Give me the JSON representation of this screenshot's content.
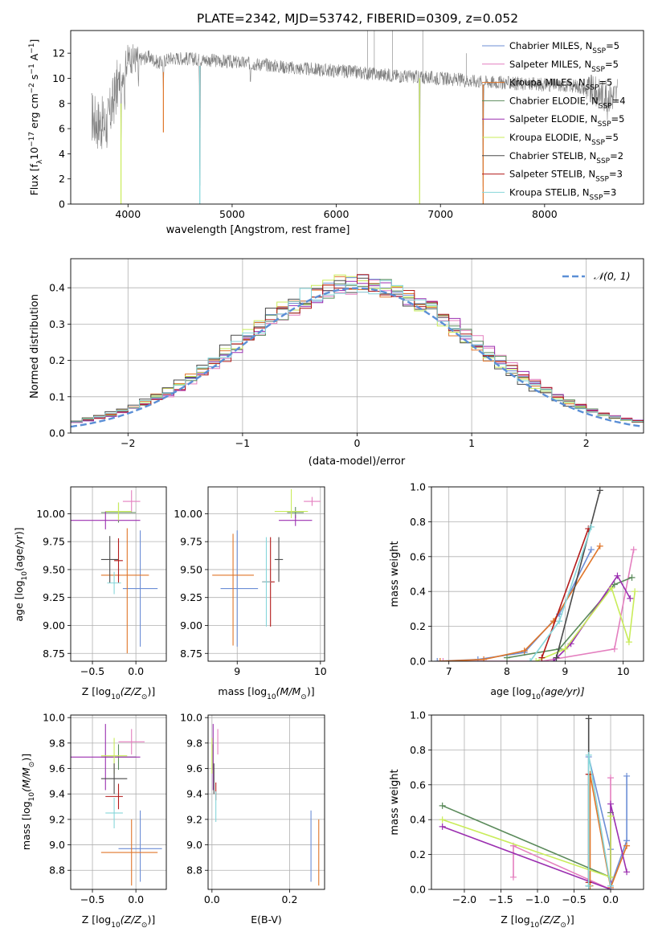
{
  "figure": {
    "title": "PLATE=2342, MJD=53742, FIBERID=0309, z=0.052",
    "models": [
      {
        "name": "Chabrier MILES",
        "nssp": "5",
        "color": "#6c8ed6"
      },
      {
        "name": "Salpeter MILES",
        "nssp": "5",
        "color": "#e47fbf"
      },
      {
        "name": "Kroupa MILES",
        "nssp": "5",
        "color": "#e0762a"
      },
      {
        "name": "Chabrier ELODIE",
        "nssp": "4",
        "color": "#5a8a5a"
      },
      {
        "name": "Salpeter ELODIE",
        "nssp": "5",
        "color": "#9b2fb0"
      },
      {
        "name": "Kroupa ELODIE",
        "nssp": "5",
        "color": "#c9ec5a"
      },
      {
        "name": "Chabrier STELIB",
        "nssp": "2",
        "color": "#4a4a4a"
      },
      {
        "name": "Salpeter STELIB",
        "nssp": "3",
        "color": "#b21a1a"
      },
      {
        "name": "Kroupa STELIB",
        "nssp": "3",
        "color": "#86d6da"
      }
    ]
  },
  "chart_data": [
    {
      "id": "spectrum",
      "type": "line",
      "title": "PLATE=2342, MJD=53742, FIBERID=0309, z=0.052",
      "xlabel": "wavelength [Angstrom, rest frame]",
      "ylabel_parts": [
        "Flux [f",
        "λ",
        "10",
        "−17",
        " erg cm",
        "−2",
        " s",
        "−1",
        " A",
        "−1",
        "]"
      ],
      "xlim": [
        3450,
        8950
      ],
      "ylim": [
        0,
        13.8
      ],
      "xticks": [
        4000,
        5000,
        6000,
        7000,
        8000
      ],
      "yticks": [
        0,
        2,
        4,
        6,
        8,
        10,
        12
      ],
      "grid": false,
      "legend_position": "top-right",
      "data_color": "#808080",
      "model_color": "#7fd6da",
      "continuum": {
        "x": [
          3650,
          3700,
          3800,
          3900,
          4000,
          4100,
          4200,
          4300,
          4400,
          4500,
          4700,
          5000,
          5300,
          5600,
          6000,
          6300,
          6600,
          7000,
          7300,
          7500,
          7700,
          8000,
          8300,
          8600,
          8700
        ],
        "y": [
          7.0,
          6.5,
          6.3,
          9.5,
          11.6,
          11.5,
          11.7,
          11.2,
          11.6,
          11.6,
          11.5,
          11.3,
          11.1,
          10.8,
          10.6,
          10.4,
          10.2,
          10.0,
          9.8,
          9.7,
          9.6,
          9.5,
          9.4,
          8.6,
          8.7
        ]
      },
      "absorption_features": [
        {
          "x": 3933,
          "depth": 7.5
        },
        {
          "x": 3968,
          "depth": 4.0
        },
        {
          "x": 4101,
          "depth": 2.5
        },
        {
          "x": 4340,
          "depth": 3.0
        },
        {
          "x": 4690,
          "depth": 11.5
        },
        {
          "x": 5175,
          "depth": 1.5
        },
        {
          "x": 6800,
          "depth": 10.0
        },
        {
          "x": 7410,
          "depth": 10.0
        },
        {
          "x": 8600,
          "depth": 2.0
        }
      ]
    },
    {
      "id": "residuals",
      "type": "histogram",
      "xlabel": "(data-model)/error",
      "ylabel": "Normed distribution",
      "xlim": [
        -2.5,
        2.5
      ],
      "ylim": [
        0,
        0.48
      ],
      "xticks": [
        -2,
        -1,
        0,
        1,
        2
      ],
      "yticks": [
        0.0,
        0.1,
        0.2,
        0.3,
        0.4
      ],
      "grid": true,
      "legend_position": "top-right",
      "reference_label": "𝒩(0, 1)",
      "reference_color": "#5b8fd6",
      "bin_width": 0.1,
      "series_offsets": [
        0.0,
        0.05,
        -0.03,
        0.02,
        0.04,
        -0.02,
        -0.05,
        0.03,
        -0.01
      ]
    },
    {
      "id": "age-vs-Z",
      "type": "scatter",
      "xlabel_parts": [
        "Z [log",
        "10",
        "(Z/Z",
        "⊙",
        ")]"
      ],
      "ylabel_parts": [
        "age  [log",
        "10",
        "(age/yr)]"
      ],
      "xlim": [
        -0.75,
        0.35
      ],
      "ylim": [
        8.68,
        10.24
      ],
      "xticks": [
        -0.5,
        0.0
      ],
      "yticks": [
        8.75,
        9.0,
        9.25,
        9.5,
        9.75,
        10.0
      ],
      "grid": true,
      "points": [
        {
          "x": 0.05,
          "y": 9.33,
          "xerr": [
            0.2,
            0.2
          ],
          "yerr": [
            0.52,
            0.52
          ],
          "color": "#6c8ed6"
        },
        {
          "x": -0.05,
          "y": 10.11,
          "xerr": [
            0.1,
            0.1
          ],
          "yerr": [
            0.1,
            0.1
          ],
          "color": "#e47fbf"
        },
        {
          "x": -0.1,
          "y": 9.45,
          "xerr": [
            0.3,
            0.25
          ],
          "yerr": [
            0.7,
            0.42
          ],
          "color": "#e0762a"
        },
        {
          "x": -0.2,
          "y": 10.01,
          "xerr": [
            0.2,
            0.2
          ],
          "yerr": [
            0.09,
            0.09
          ],
          "color": "#5a8a5a"
        },
        {
          "x": -0.35,
          "y": 9.94,
          "xerr": [
            0.4,
            0.4
          ],
          "yerr": [
            0.08,
            0.08
          ],
          "color": "#9b2fb0"
        },
        {
          "x": -0.2,
          "y": 10.02,
          "xerr": [
            0.15,
            0.15
          ],
          "yerr": [
            0.08,
            0.08
          ],
          "color": "#c9ec5a"
        },
        {
          "x": -0.3,
          "y": 9.59,
          "xerr": [
            0.1,
            0.1
          ],
          "yerr": [
            0.21,
            0.21
          ],
          "color": "#4a4a4a"
        },
        {
          "x": -0.2,
          "y": 9.58,
          "xerr": [
            0.05,
            0.05
          ],
          "yerr": [
            0.2,
            0.2
          ],
          "color": "#b21a1a"
        },
        {
          "x": -0.25,
          "y": 9.38,
          "xerr": [
            0.08,
            0.08
          ],
          "yerr": [
            0.1,
            0.1
          ],
          "color": "#86d6da"
        }
      ]
    },
    {
      "id": "age-vs-mass",
      "type": "scatter",
      "xlabel_parts": [
        "mass [log",
        "10",
        "(M/M",
        "⊙",
        ")]"
      ],
      "xlim": [
        8.65,
        10.05
      ],
      "ylim": [
        8.68,
        10.24
      ],
      "xticks": [
        9,
        10
      ],
      "yticks": [
        8.75,
        9.0,
        9.25,
        9.5,
        9.75,
        10.0
      ],
      "grid": true,
      "points": [
        {
          "x": 9.0,
          "y": 9.33,
          "xerr": [
            0.2,
            0.25
          ],
          "yerr": [
            0.52,
            0.52
          ],
          "color": "#6c8ed6"
        },
        {
          "x": 9.9,
          "y": 10.11,
          "xerr": [
            0.1,
            0.1
          ],
          "yerr": [
            0.04,
            0.04
          ],
          "color": "#e47fbf"
        },
        {
          "x": 8.95,
          "y": 9.45,
          "xerr": [
            0.25,
            0.25
          ],
          "yerr": [
            0.63,
            0.37
          ],
          "color": "#e0762a"
        },
        {
          "x": 9.7,
          "y": 10.01,
          "xerr": [
            0.1,
            0.1
          ],
          "yerr": [
            0.05,
            0.05
          ],
          "color": "#5a8a5a"
        },
        {
          "x": 9.7,
          "y": 9.94,
          "xerr": [
            0.2,
            0.2
          ],
          "yerr": [
            0.05,
            0.05
          ],
          "color": "#9b2fb0"
        },
        {
          "x": 9.65,
          "y": 10.02,
          "xerr": [
            0.2,
            0.2
          ],
          "yerr": [
            0.06,
            0.2
          ],
          "color": "#c9ec5a"
        },
        {
          "x": 9.5,
          "y": 9.59,
          "xerr": [
            0.05,
            0.05
          ],
          "yerr": [
            0.2,
            0.2
          ],
          "color": "#4a4a4a"
        },
        {
          "x": 9.4,
          "y": 9.39,
          "xerr": [
            0.1,
            0.05
          ],
          "yerr": [
            0.4,
            0.4
          ],
          "color": "#b21a1a"
        },
        {
          "x": 9.35,
          "y": 9.39,
          "xerr": [
            0.05,
            0.05
          ],
          "yerr": [
            0.4,
            0.4
          ],
          "color": "#86d6da"
        }
      ]
    },
    {
      "id": "mass-weight-vs-age",
      "type": "line",
      "xlabel_parts": [
        "age  [log",
        "10",
        "(age/yr)]"
      ],
      "ylabel": "mass weight",
      "xlim": [
        6.7,
        10.35
      ],
      "ylim": [
        0.0,
        1.0
      ],
      "xticks": [
        7,
        8,
        9,
        10
      ],
      "yticks": [
        0.0,
        0.2,
        0.4,
        0.6,
        0.8,
        1.0
      ],
      "grid": true,
      "series": [
        {
          "color": "#6c8ed6",
          "x": [
            6.8,
            7.5,
            8.3,
            8.9,
            9.45
          ],
          "y": [
            0.0,
            0.01,
            0.05,
            0.27,
            0.64
          ]
        },
        {
          "color": "#e47fbf",
          "x": [
            6.9,
            7.6,
            8.6,
            9.85,
            10.18
          ],
          "y": [
            0.0,
            0.0,
            0.0,
            0.07,
            0.64
          ]
        },
        {
          "color": "#e0762a",
          "x": [
            6.85,
            7.6,
            8.3,
            8.8,
            9.6
          ],
          "y": [
            0.0,
            0.01,
            0.06,
            0.23,
            0.66
          ]
        },
        {
          "color": "#5a8a5a",
          "x": [
            8.0,
            8.9,
            9.85,
            10.15
          ],
          "y": [
            0.02,
            0.07,
            0.44,
            0.48
          ]
        },
        {
          "color": "#9b2fb0",
          "x": [
            8.8,
            9.1,
            9.9,
            10.12
          ],
          "y": [
            0.0,
            0.1,
            0.49,
            0.36
          ]
        },
        {
          "color": "#c9ec5a",
          "x": [
            8.5,
            9.0,
            9.8,
            10.1,
            10.2
          ],
          "y": [
            0.0,
            0.07,
            0.42,
            0.11,
            0.4
          ]
        },
        {
          "color": "#4a4a4a",
          "x": [
            8.85,
            9.6
          ],
          "y": [
            0.02,
            0.98
          ]
        },
        {
          "color": "#b21a1a",
          "x": [
            8.6,
            9.4
          ],
          "y": [
            0.02,
            0.76
          ]
        },
        {
          "color": "#86d6da",
          "x": [
            8.4,
            8.9,
            9.45
          ],
          "y": [
            0.0,
            0.23,
            0.77
          ]
        }
      ]
    },
    {
      "id": "mass-vs-Z",
      "type": "scatter",
      "xlabel_parts": [
        "Z [log",
        "10",
        "(Z/Z",
        "⊙",
        ")]"
      ],
      "ylabel_parts": [
        "mass [log",
        "10",
        "(M/M",
        "⊙",
        ")]"
      ],
      "xlim": [
        -0.75,
        0.35
      ],
      "ylim": [
        8.65,
        10.02
      ],
      "xticks": [
        -0.5,
        0.0
      ],
      "yticks": [
        8.8,
        9.0,
        9.2,
        9.4,
        9.6,
        9.8,
        10.0
      ],
      "grid": true,
      "points": [
        {
          "x": 0.05,
          "y": 8.97,
          "xerr": [
            0.25,
            0.25
          ],
          "yerr": [
            0.26,
            0.3
          ],
          "color": "#6c8ed6"
        },
        {
          "x": -0.05,
          "y": 9.81,
          "xerr": [
            0.15,
            0.15
          ],
          "yerr": [
            0.1,
            0.1
          ],
          "color": "#e47fbf"
        },
        {
          "x": -0.05,
          "y": 8.94,
          "xerr": [
            0.35,
            0.3
          ],
          "yerr": [
            0.26,
            0.26
          ],
          "color": "#e0762a"
        },
        {
          "x": -0.2,
          "y": 9.69,
          "xerr": [
            0.2,
            0.2
          ],
          "yerr": [
            0.1,
            0.1
          ],
          "color": "#5a8a5a"
        },
        {
          "x": -0.35,
          "y": 9.69,
          "xerr": [
            0.4,
            0.4
          ],
          "yerr": [
            0.26,
            0.26
          ],
          "color": "#9b2fb0"
        },
        {
          "x": -0.25,
          "y": 9.7,
          "xerr": [
            0.15,
            0.15
          ],
          "yerr": [
            0.14,
            0.14
          ],
          "color": "#c9ec5a"
        },
        {
          "x": -0.25,
          "y": 9.52,
          "xerr": [
            0.15,
            0.15
          ],
          "yerr": [
            0.12,
            0.12
          ],
          "color": "#4a4a4a"
        },
        {
          "x": -0.2,
          "y": 9.38,
          "xerr": [
            0.15,
            0.05
          ],
          "yerr": [
            0.1,
            0.1
          ],
          "color": "#b21a1a"
        },
        {
          "x": -0.25,
          "y": 9.25,
          "xerr": [
            0.1,
            0.1
          ],
          "yerr": [
            0.12,
            0.12
          ],
          "color": "#86d6da"
        }
      ]
    },
    {
      "id": "mass-vs-ebv",
      "type": "scatter",
      "xlabel": "E(B-V)",
      "xlim": [
        -0.01,
        0.29
      ],
      "ylim": [
        8.65,
        10.02
      ],
      "xticks": [
        0.0,
        0.2
      ],
      "yticks": [
        8.8,
        9.0,
        9.2,
        9.4,
        9.6,
        9.8,
        10.0
      ],
      "grid": true,
      "points": [
        {
          "x": 0.255,
          "y": 8.97,
          "xerr": [
            0,
            0
          ],
          "yerr": [
            0.26,
            0.3
          ],
          "color": "#6c8ed6"
        },
        {
          "x": 0.015,
          "y": 9.81,
          "xerr": [
            0,
            0
          ],
          "yerr": [
            0.1,
            0.1
          ],
          "color": "#e47fbf"
        },
        {
          "x": 0.275,
          "y": 8.94,
          "xerr": [
            0,
            0
          ],
          "yerr": [
            0.26,
            0.26
          ],
          "color": "#e0762a"
        },
        {
          "x": 0.003,
          "y": 9.69,
          "xerr": [
            0,
            0
          ],
          "yerr": [
            0.1,
            0.1
          ],
          "color": "#5a8a5a"
        },
        {
          "x": 0.003,
          "y": 9.69,
          "xerr": [
            0,
            0
          ],
          "yerr": [
            0.26,
            0.26
          ],
          "color": "#9b2fb0"
        },
        {
          "x": 0.0,
          "y": 9.7,
          "xerr": [
            0,
            0
          ],
          "yerr": [
            0.14,
            0.14
          ],
          "color": "#c9ec5a"
        },
        {
          "x": 0.005,
          "y": 9.52,
          "xerr": [
            0,
            0
          ],
          "yerr": [
            0.12,
            0.12
          ],
          "color": "#4a4a4a"
        },
        {
          "x": 0.01,
          "y": 9.42,
          "xerr": [
            0,
            0
          ],
          "yerr": [
            0.07,
            0.07
          ],
          "color": "#b21a1a"
        },
        {
          "x": 0.01,
          "y": 9.3,
          "xerr": [
            0,
            0
          ],
          "yerr": [
            0.12,
            0.12
          ],
          "color": "#86d6da"
        }
      ]
    },
    {
      "id": "mass-weight-vs-Z",
      "type": "line",
      "xlabel_parts": [
        "Z [log",
        "10",
        "(Z/Z",
        "⊙",
        ")]"
      ],
      "ylabel": "mass weight",
      "xlim": [
        -2.45,
        0.45
      ],
      "ylim": [
        0.0,
        1.0
      ],
      "xticks": [
        -2.0,
        -1.5,
        -1.0,
        -0.5,
        0.0
      ],
      "yticks": [
        0.0,
        0.2,
        0.4,
        0.6,
        0.8,
        1.0
      ],
      "grid": true,
      "series": [
        {
          "color": "#6c8ed6",
          "x": [
            -0.3,
            -0.3,
            0.0,
            0.0,
            0.22,
            0.22
          ],
          "y": [
            0.02,
            0.76,
            0.23,
            0.02,
            0.28,
            0.65
          ]
        },
        {
          "color": "#e47fbf",
          "x": [
            -1.33,
            -1.33,
            0.0,
            0.0
          ],
          "y": [
            0.07,
            0.25,
            0.0,
            0.64
          ]
        },
        {
          "color": "#e0762a",
          "x": [
            -0.28,
            -0.28,
            0.0,
            0.22
          ],
          "y": [
            0.02,
            0.66,
            0.01,
            0.25
          ]
        },
        {
          "color": "#5a8a5a",
          "x": [
            -2.3,
            0.0,
            0.0
          ],
          "y": [
            0.48,
            0.07,
            0.44
          ]
        },
        {
          "color": "#9b2fb0",
          "x": [
            -2.3,
            0.0,
            0.0,
            0.22
          ],
          "y": [
            0.36,
            0.0,
            0.49,
            0.1
          ]
        },
        {
          "color": "#c9ec5a",
          "x": [
            -2.3,
            0.0,
            0.0
          ],
          "y": [
            0.4,
            0.07,
            0.42
          ]
        },
        {
          "color": "#4a4a4a",
          "x": [
            -0.3,
            -0.3
          ],
          "y": [
            0.02,
            0.98
          ]
        },
        {
          "color": "#b21a1a",
          "x": [
            -0.3,
            -0.3
          ],
          "y": [
            0.04,
            0.66
          ]
        },
        {
          "color": "#86d6da",
          "x": [
            -0.3,
            -0.3,
            0.0
          ],
          "y": [
            0.02,
            0.77,
            0.02
          ]
        }
      ]
    }
  ]
}
